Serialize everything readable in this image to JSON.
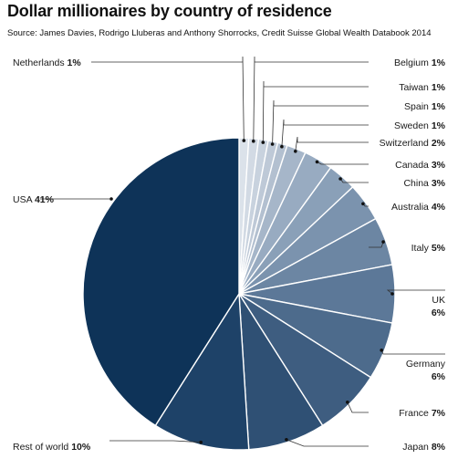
{
  "title": "Dollar millionaires by country of residence",
  "source": "Source: James Davies, Rodrigo Lluberas and Anthony Shorrocks, Credit Suisse Global Wealth Databook 2014",
  "chart_data": {
    "type": "pie",
    "title": "Dollar millionaires by country of residence",
    "unit": "%",
    "slices": [
      {
        "label": "Netherlands",
        "value": 1,
        "value_label": "1%",
        "color": "#dbe2ea"
      },
      {
        "label": "Belgium",
        "value": 1,
        "value_label": "1%",
        "color": "#d2dae4"
      },
      {
        "label": "Taiwan",
        "value": 1,
        "value_label": "1%",
        "color": "#c8d2de"
      },
      {
        "label": "Spain",
        "value": 1,
        "value_label": "1%",
        "color": "#bec9d7"
      },
      {
        "label": "Sweden",
        "value": 1,
        "value_label": "1%",
        "color": "#b3c0d0"
      },
      {
        "label": "Switzerland",
        "value": 2,
        "value_label": "2%",
        "color": "#a6b6c9"
      },
      {
        "label": "Canada",
        "value": 3,
        "value_label": "3%",
        "color": "#98abc1"
      },
      {
        "label": "China",
        "value": 3,
        "value_label": "3%",
        "color": "#8aa0b8"
      },
      {
        "label": "Australia",
        "value": 4,
        "value_label": "4%",
        "color": "#7b93ae"
      },
      {
        "label": "Italy",
        "value": 5,
        "value_label": "5%",
        "color": "#6c86a3"
      },
      {
        "label": "UK",
        "value": 6,
        "value_label": "6%",
        "color": "#5c7898"
      },
      {
        "label": "Germany",
        "value": 6,
        "value_label": "6%",
        "color": "#4d6b8c"
      },
      {
        "label": "France",
        "value": 7,
        "value_label": "7%",
        "color": "#3e5d80"
      },
      {
        "label": "Japan",
        "value": 8,
        "value_label": "8%",
        "color": "#2f5074"
      },
      {
        "label": "Rest of world",
        "value": 10,
        "value_label": "10%",
        "color": "#1e4268"
      },
      {
        "label": "USA",
        "value": 41,
        "value_label": "41%",
        "color": "#0e3358"
      }
    ]
  }
}
